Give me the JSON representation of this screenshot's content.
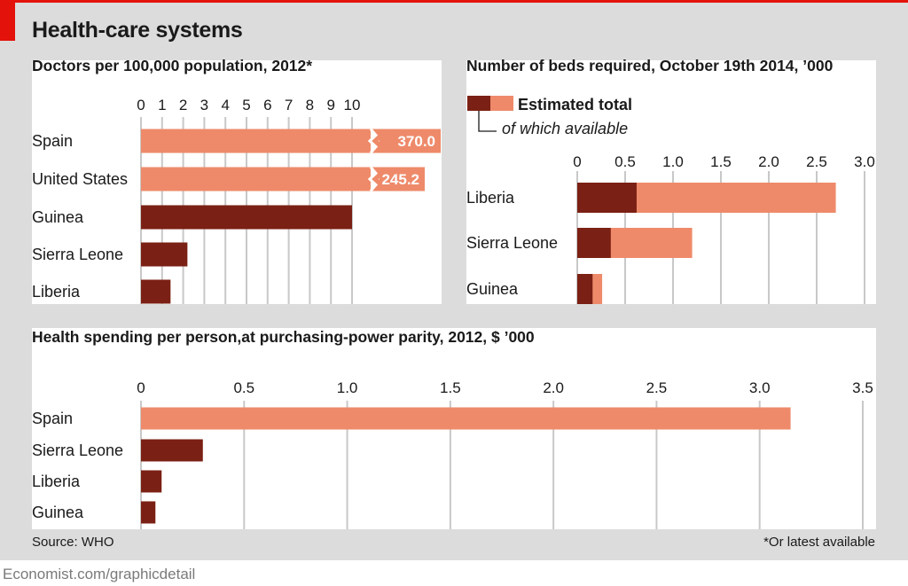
{
  "title": "Health-care systems",
  "source": "Source: WHO",
  "footnote": "*Or latest available",
  "credit": "Economist.com/graphicdetail",
  "colors": {
    "dark": "#7b2014",
    "light": "#ee8a6a",
    "grid": "#c8c8c8",
    "accent": "#e3120b"
  },
  "chart_data": [
    {
      "type": "bar",
      "title": "Doctors per 100,000 population, 2012*",
      "categories": [
        "Spain",
        "United States",
        "Guinea",
        "Sierra Leone",
        "Liberia"
      ],
      "values": [
        370.0,
        245.2,
        10.0,
        2.2,
        1.4
      ],
      "value_labels": [
        "370.0",
        "245.2",
        "",
        "",
        ""
      ],
      "xlim": [
        0,
        10
      ],
      "ticks": [
        "0",
        "1",
        "2",
        "3",
        "4",
        "5",
        "6",
        "7",
        "8",
        "9",
        "10"
      ],
      "grid": true
    },
    {
      "type": "bar",
      "title": "Number of beds required, October 19th 2014, ’000",
      "legend": {
        "total": "Estimated total",
        "available": "of which available"
      },
      "categories": [
        "Liberia",
        "Sierra Leone",
        "Guinea"
      ],
      "series": [
        {
          "name": "Estimated total",
          "values": [
            2.7,
            1.2,
            0.26
          ]
        },
        {
          "name": "of which available",
          "values": [
            0.62,
            0.35,
            0.16
          ]
        }
      ],
      "xlim": [
        0,
        3.0
      ],
      "ticks": [
        "0",
        "0.5",
        "1.0",
        "1.5",
        "2.0",
        "2.5",
        "3.0"
      ],
      "grid": true
    },
    {
      "type": "bar",
      "title": "Health spending per person,at purchasing-power parity, 2012, $ ’000",
      "categories": [
        "Spain",
        "Sierra Leone",
        "Liberia",
        "Guinea"
      ],
      "values": [
        3.15,
        0.3,
        0.1,
        0.07
      ],
      "xlim": [
        0,
        3.5
      ],
      "ticks": [
        "0",
        "0.5",
        "1.0",
        "1.5",
        "2.0",
        "2.5",
        "3.0",
        "3.5"
      ],
      "grid": true
    }
  ]
}
